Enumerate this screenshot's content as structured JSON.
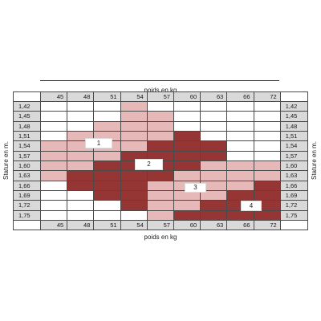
{
  "chart_data": {
    "type": "heatmap",
    "xlabel": "poids en kg",
    "ylabel": "Stature en m.",
    "x": [
      45,
      48,
      51,
      54,
      57,
      60,
      63,
      66,
      72
    ],
    "y": [
      "1,42",
      "1,45",
      "1,48",
      "1,51",
      "1,54",
      "1,57",
      "1,60",
      "1,63",
      "1,66",
      "1,69",
      "1,72",
      "1,75"
    ],
    "zones": [
      {
        "label": "1",
        "color": "#e6b8b7"
      },
      {
        "label": "2",
        "color": "#963634"
      },
      {
        "label": "3",
        "color": "#e6b8b7"
      },
      {
        "label": "4",
        "color": "#963634"
      }
    ],
    "cells": [
      [
        0,
        0,
        0,
        1,
        0,
        0,
        0,
        0,
        0
      ],
      [
        0,
        0,
        0,
        1,
        1,
        0,
        0,
        0,
        0
      ],
      [
        0,
        0,
        1,
        1,
        1,
        0,
        0,
        0,
        0
      ],
      [
        0,
        1,
        1,
        1,
        1,
        2,
        0,
        0,
        0
      ],
      [
        1,
        1,
        1,
        1,
        2,
        2,
        2,
        0,
        0
      ],
      [
        1,
        1,
        1,
        2,
        2,
        2,
        2,
        0,
        0
      ],
      [
        1,
        1,
        2,
        2,
        2,
        2,
        3,
        3,
        3
      ],
      [
        1,
        2,
        2,
        2,
        2,
        3,
        3,
        3,
        3
      ],
      [
        0,
        2,
        2,
        2,
        3,
        3,
        3,
        3,
        4
      ],
      [
        0,
        0,
        2,
        2,
        3,
        3,
        3,
        4,
        4
      ],
      [
        0,
        0,
        0,
        2,
        3,
        3,
        4,
        4,
        4
      ],
      [
        0,
        0,
        0,
        0,
        3,
        4,
        4,
        4,
        4
      ]
    ],
    "grid": true
  },
  "colors": {
    "tick_bg": "#d9d9d9",
    "grid_line": "#4a4a4a",
    "empty_cell": "#ffffff"
  }
}
